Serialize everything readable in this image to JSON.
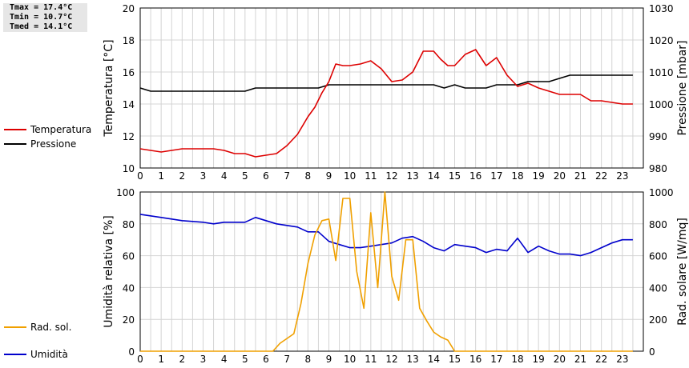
{
  "stats": {
    "tmax": "Tmax = 17.4°C",
    "tmin": "Tmin = 10.7°C",
    "tmed": "Tmed = 14.1°C"
  },
  "colors": {
    "temperatura": "#dd0000",
    "pressione": "#000000",
    "umidita": "#0000cc",
    "radiazione": "#f0a000",
    "grid": "#d4d4d4"
  },
  "chart_data": [
    {
      "type": "line",
      "xlim": [
        0,
        24
      ],
      "xticks": [
        0,
        1,
        2,
        3,
        4,
        5,
        6,
        7,
        8,
        9,
        10,
        11,
        12,
        13,
        14,
        15,
        16,
        17,
        18,
        19,
        20,
        21,
        22,
        23
      ],
      "y_left": {
        "label": "Temperatura [°C]",
        "lim": [
          10,
          20
        ],
        "ticks": [
          10,
          12,
          14,
          16,
          18,
          20
        ]
      },
      "y_right": {
        "label": "Pressione [mbar]",
        "lim": [
          980,
          1030
        ],
        "ticks": [
          980,
          990,
          1000,
          1010,
          1020,
          1030
        ]
      },
      "grid": true,
      "legend": "left",
      "series": [
        {
          "name": "Temperatura",
          "axis": "left",
          "x": [
            0,
            0.5,
            1,
            1.5,
            2,
            2.5,
            3,
            3.5,
            4,
            4.5,
            5,
            5.5,
            6,
            6.5,
            7,
            7.5,
            8,
            8.33,
            8.67,
            9,
            9.33,
            9.67,
            10,
            10.5,
            11,
            11.5,
            12,
            12.5,
            13,
            13.5,
            14,
            14.33,
            14.67,
            15,
            15.5,
            16,
            16.5,
            17,
            17.5,
            18,
            18.5,
            19,
            19.5,
            20,
            20.5,
            21,
            21.5,
            22,
            22.5,
            23,
            23.5
          ],
          "y": [
            11.2,
            11.1,
            11.0,
            11.1,
            11.2,
            11.2,
            11.2,
            11.2,
            11.1,
            10.9,
            10.9,
            10.7,
            10.8,
            10.9,
            11.4,
            12.1,
            13.2,
            13.8,
            14.7,
            15.4,
            16.5,
            16.4,
            16.4,
            16.5,
            16.7,
            16.2,
            15.4,
            15.5,
            16.0,
            17.3,
            17.3,
            16.8,
            16.4,
            16.4,
            17.1,
            17.4,
            16.4,
            16.9,
            15.8,
            15.1,
            15.3,
            15.0,
            14.8,
            14.6,
            14.6,
            14.6,
            14.2,
            14.2,
            14.1,
            14.0,
            14.0
          ]
        },
        {
          "name": "Pressione",
          "axis": "right",
          "x": [
            0,
            0.5,
            1,
            2,
            3,
            4,
            5,
            5.5,
            6,
            7,
            8,
            8.5,
            9,
            10,
            11,
            12,
            13,
            14,
            14.5,
            15,
            15.5,
            16,
            16.5,
            17,
            18,
            18.5,
            19,
            19.5,
            20,
            20.5,
            21,
            22,
            23,
            23.5
          ],
          "y": [
            1005,
            1004,
            1004,
            1004,
            1004,
            1004,
            1004,
            1005,
            1005,
            1005,
            1005,
            1005,
            1006,
            1006,
            1006,
            1006,
            1006,
            1006,
            1005,
            1006,
            1005,
            1005,
            1005,
            1006,
            1006,
            1007,
            1007,
            1007,
            1008,
            1009,
            1009,
            1009,
            1009,
            1009
          ]
        }
      ]
    },
    {
      "type": "line",
      "xlim": [
        0,
        24
      ],
      "xticks": [
        0,
        1,
        2,
        3,
        4,
        5,
        6,
        7,
        8,
        9,
        10,
        11,
        12,
        13,
        14,
        15,
        16,
        17,
        18,
        19,
        20,
        21,
        22,
        23
      ],
      "y_left": {
        "label": "Umidità relativa [%]",
        "lim": [
          0,
          100
        ],
        "ticks": [
          0,
          20,
          40,
          60,
          80,
          100
        ]
      },
      "y_right": {
        "label": "Rad. solare [W/mq]",
        "lim": [
          0,
          1000
        ],
        "ticks": [
          0,
          200,
          400,
          600,
          800,
          1000
        ]
      },
      "grid": true,
      "legend": "left",
      "series": [
        {
          "name": "Umidità",
          "axis": "left",
          "x": [
            0,
            1,
            2,
            3,
            3.5,
            4,
            4.5,
            5,
            5.5,
            6,
            6.5,
            7,
            7.5,
            8,
            8.5,
            9,
            9.5,
            10,
            10.5,
            11,
            11.5,
            12,
            12.5,
            13,
            13.5,
            14,
            14.5,
            15,
            15.5,
            16,
            16.5,
            17,
            17.5,
            18,
            18.5,
            19,
            19.5,
            20,
            20.5,
            21,
            21.5,
            22,
            22.5,
            23,
            23.5
          ],
          "y": [
            86,
            84,
            82,
            81,
            80,
            81,
            81,
            81,
            84,
            82,
            80,
            79,
            78,
            75,
            75,
            69,
            67,
            65,
            65,
            66,
            67,
            68,
            71,
            72,
            69,
            65,
            63,
            67,
            66,
            65,
            62,
            64,
            63,
            71,
            62,
            66,
            63,
            61,
            61,
            60,
            62,
            65,
            68,
            70,
            70
          ]
        },
        {
          "name": "Rad. sol.",
          "axis": "right",
          "x": [
            0,
            1,
            2,
            3,
            4,
            5,
            6,
            6.33,
            6.67,
            7,
            7.33,
            7.67,
            8,
            8.33,
            8.67,
            9,
            9.33,
            9.67,
            10,
            10.33,
            10.67,
            11,
            11.33,
            11.67,
            12,
            12.33,
            12.67,
            13,
            13.33,
            13.67,
            14,
            14.33,
            14.67,
            15,
            15.33,
            15.67,
            16,
            16.33,
            16.67,
            17,
            17.33,
            17.67,
            18,
            18.33,
            18.67,
            19,
            19.33,
            20,
            21,
            22,
            23,
            23.5
          ],
          "y": [
            0,
            0,
            0,
            0,
            0,
            0,
            0,
            0,
            50,
            80,
            110,
            300,
            550,
            730,
            820,
            830,
            570,
            960,
            960,
            500,
            270,
            870,
            400,
            1000,
            470,
            320,
            700,
            700,
            270,
            190,
            120,
            90,
            70,
            0,
            0,
            0,
            0,
            0,
            0,
            0,
            0,
            0,
            0,
            0,
            0,
            0,
            0,
            0,
            0,
            0,
            0,
            0
          ]
        }
      ]
    }
  ]
}
